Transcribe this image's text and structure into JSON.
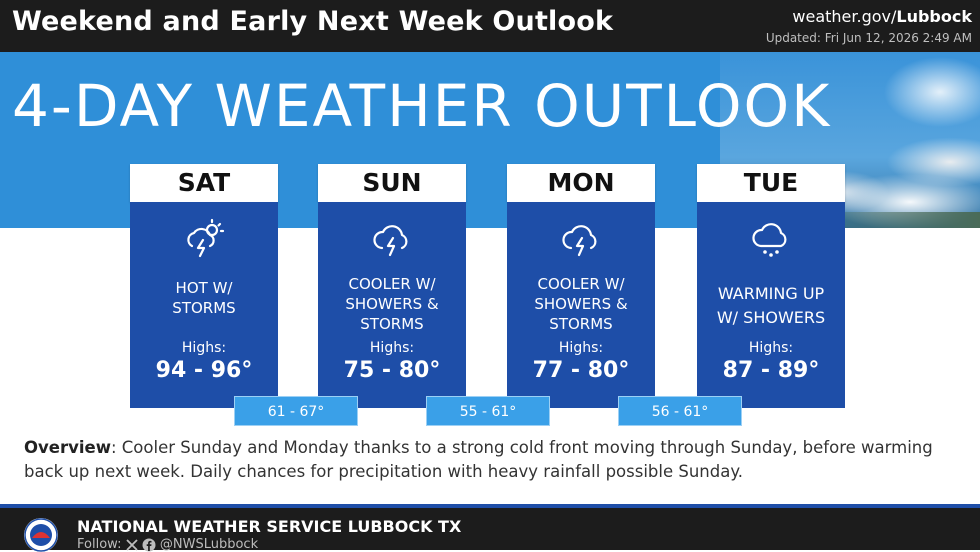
{
  "header": {
    "title": "Weekend and Early Next Week Outlook",
    "site_prefix": "weather.gov/",
    "site_bold": "Lubbock",
    "updated": "Updated: Fri Jun 12, 2026 2:49 AM"
  },
  "banner": {
    "title": "4-DAY WEATHER OUTLOOK"
  },
  "days": [
    {
      "name": "SAT",
      "icon": "sun-storm-icon",
      "desc_line1": "HOT W/",
      "desc_line2": "STORMS",
      "desc_line3": "",
      "highs_label": "Highs:",
      "highs": "94 - 96°"
    },
    {
      "name": "SUN",
      "icon": "storm-cloud-icon",
      "desc_line1": "COOLER W/",
      "desc_line2": "SHOWERS &",
      "desc_line3": "STORMS",
      "highs_label": "Highs:",
      "highs": "75 - 80°"
    },
    {
      "name": "MON",
      "icon": "storm-cloud-icon",
      "desc_line1": "COOLER W/",
      "desc_line2": "SHOWERS &",
      "desc_line3": "STORMS",
      "highs_label": "Highs:",
      "highs": "77 - 80°"
    },
    {
      "name": "TUE",
      "icon": "rain-cloud-icon",
      "desc_line1": "WARMING UP",
      "desc_line2": "W/ SHOWERS",
      "desc_line3": "",
      "highs_label": "Highs:",
      "highs": "87 - 89°"
    }
  ],
  "lows": [
    "61 - 67°",
    "55 - 61°",
    "56 - 61°"
  ],
  "overview": {
    "label": "Overview",
    "text": ": Cooler Sunday and Monday thanks to a strong cold front moving through Sunday, before warming back up next week. Daily chances for precipitation with heavy rainfall possible Sunday."
  },
  "footer": {
    "org": "NATIONAL WEATHER SERVICE LUBBOCK TX",
    "follow_label": "Follow:",
    "handle": "@NWSLubbock"
  },
  "colors": {
    "panel": "#1e4ea8",
    "banner": "#2f8fd8",
    "low_box": "#3aa0e8",
    "bar": "#1c1c1c"
  }
}
